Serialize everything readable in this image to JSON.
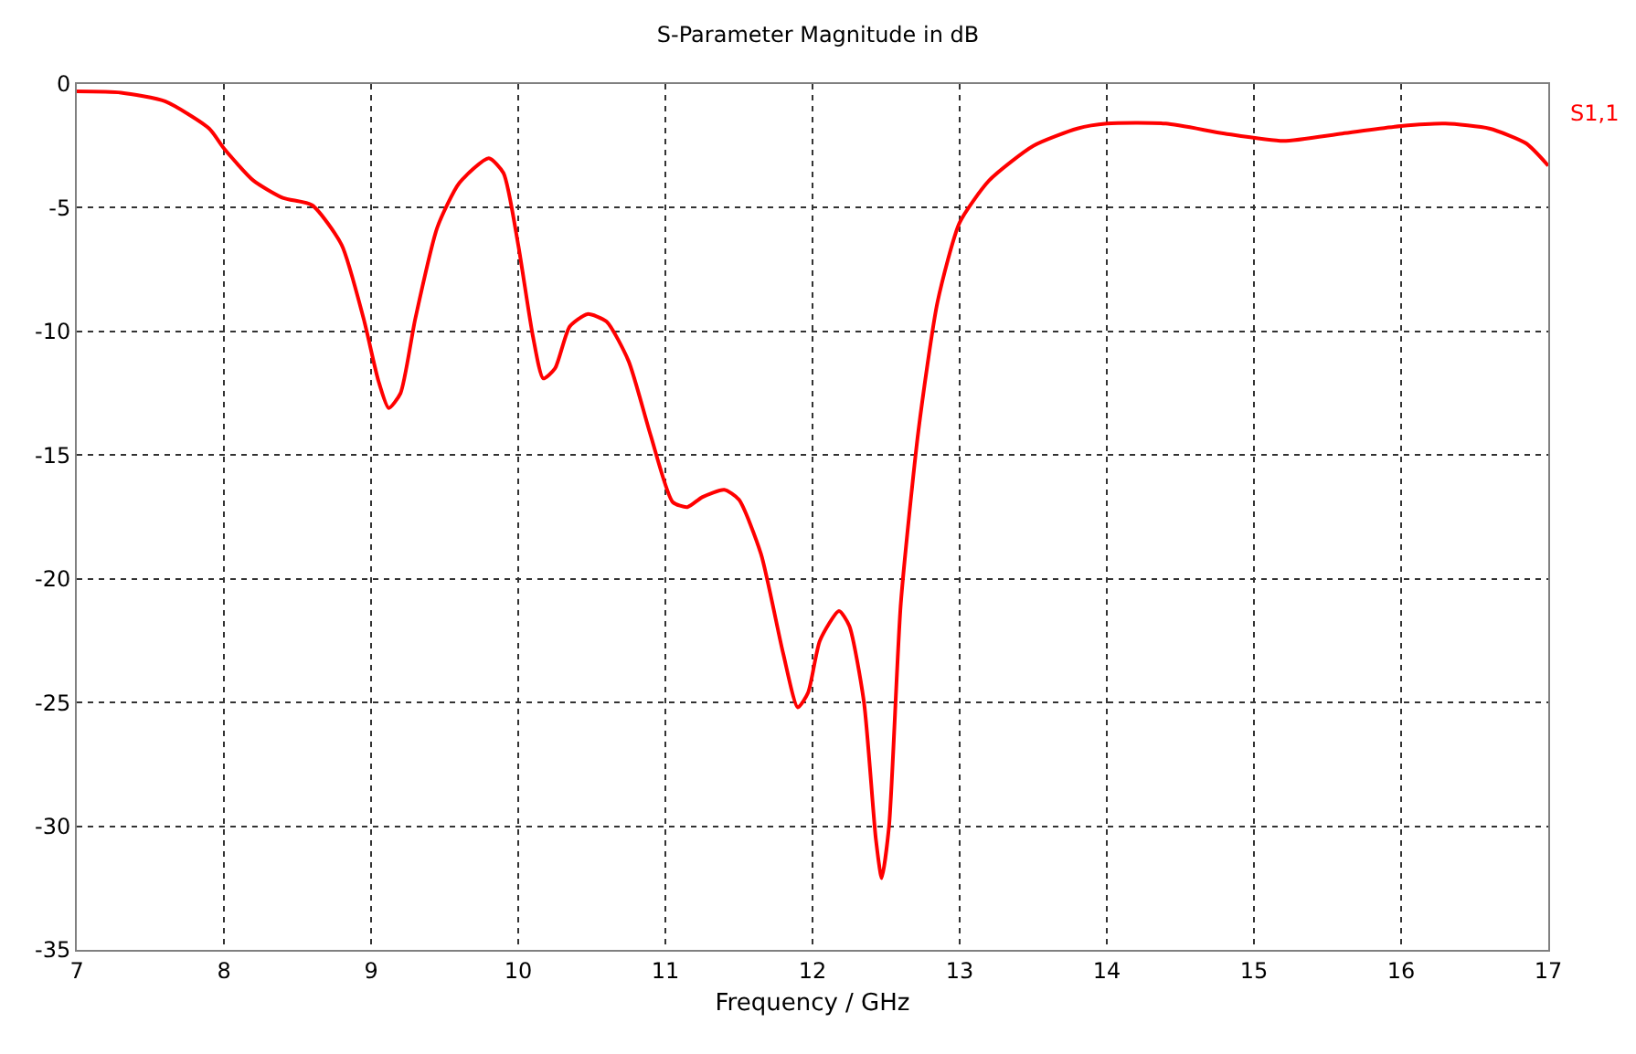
{
  "chart_data": {
    "type": "line",
    "title": "S-Parameter Magnitude in dB",
    "xlabel": "Frequency / GHz",
    "xlim": [
      7,
      17
    ],
    "xticks": [
      7,
      8,
      9,
      10,
      11,
      12,
      13,
      14,
      15,
      16,
      17
    ],
    "ylim": [
      -35,
      0
    ],
    "yticks": [
      -35,
      -30,
      -25,
      -20,
      -15,
      -10,
      -5,
      0
    ],
    "grid": true,
    "legend": false,
    "marker": "none",
    "line_style": "solid",
    "series": [
      {
        "name": "S1,1",
        "color": "#ff0000",
        "x": [
          7.0,
          7.3,
          7.6,
          7.9,
          8.0,
          8.2,
          8.4,
          8.6,
          8.8,
          8.95,
          9.05,
          9.12,
          9.2,
          9.3,
          9.45,
          9.6,
          9.8,
          9.9,
          10.0,
          10.1,
          10.17,
          10.25,
          10.35,
          10.47,
          10.6,
          10.75,
          10.9,
          11.05,
          11.15,
          11.25,
          11.4,
          11.5,
          11.65,
          11.8,
          11.9,
          11.97,
          12.05,
          12.18,
          12.25,
          12.35,
          12.43,
          12.47,
          12.52,
          12.6,
          12.72,
          12.85,
          13.0,
          13.2,
          13.5,
          13.8,
          14.0,
          14.4,
          14.8,
          15.2,
          15.6,
          16.0,
          16.3,
          16.6,
          16.85,
          17.0
        ],
        "values": [
          -0.3,
          -0.35,
          -0.7,
          -1.8,
          -2.6,
          -3.9,
          -4.6,
          -4.9,
          -6.5,
          -9.5,
          -12.0,
          -13.1,
          -12.5,
          -9.5,
          -5.8,
          -4.0,
          -3.0,
          -3.6,
          -6.5,
          -10.2,
          -11.9,
          -11.5,
          -9.8,
          -9.3,
          -9.6,
          -11.2,
          -14.2,
          -16.9,
          -17.1,
          -16.7,
          -16.4,
          -16.8,
          -19.0,
          -23.0,
          -25.2,
          -24.6,
          -22.5,
          -21.3,
          -21.9,
          -25.0,
          -30.5,
          -32.1,
          -30.0,
          -21.0,
          -14.0,
          -8.8,
          -5.6,
          -3.9,
          -2.5,
          -1.8,
          -1.6,
          -1.6,
          -2.0,
          -2.3,
          -2.0,
          -1.7,
          -1.6,
          -1.8,
          -2.4,
          -3.3
        ]
      }
    ]
  }
}
